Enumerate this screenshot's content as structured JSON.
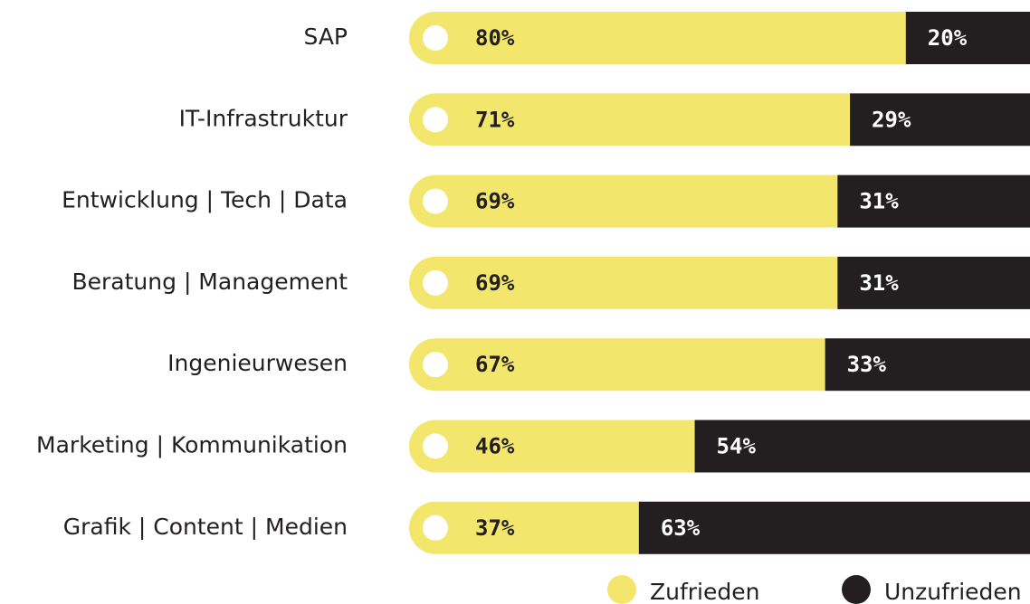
{
  "chart_data": {
    "type": "stacked-bar",
    "orientation": "horizontal",
    "categories": [
      "SAP",
      "IT-Infrastruktur",
      "Entwicklung | Tech | Data",
      "Beratung | Management",
      "Ingenieurwesen",
      "Marketing | Kommunikation",
      "Grafik | Content | Medien"
    ],
    "series": [
      {
        "name": "Zufrieden",
        "color": "#f2e66c",
        "values": [
          80,
          71,
          69,
          69,
          67,
          46,
          37
        ],
        "value_labels": [
          "80%",
          "71%",
          "69%",
          "69%",
          "67%",
          "46%",
          "37%"
        ]
      },
      {
        "name": "Unzufrieden",
        "color": "#231f20",
        "values": [
          20,
          29,
          31,
          31,
          33,
          54,
          63
        ],
        "value_labels": [
          "20%",
          "29%",
          "31%",
          "31%",
          "33%",
          "54%",
          "63%"
        ]
      }
    ],
    "xlim": [
      0,
      100
    ]
  }
}
